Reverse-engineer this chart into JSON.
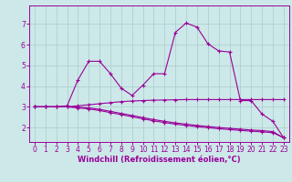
{
  "bg_color": "#cce8e8",
  "grid_color": "#aacccc",
  "line_color": "#990099",
  "xlabel": "Windchill (Refroidissement éolien,°C)",
  "xlabel_fontsize": 6,
  "tick_fontsize": 5.5,
  "ylim": [
    1.3,
    7.9
  ],
  "xlim": [
    -0.5,
    23.5
  ],
  "xticks": [
    0,
    1,
    2,
    3,
    4,
    5,
    6,
    7,
    8,
    9,
    10,
    11,
    12,
    13,
    14,
    15,
    16,
    17,
    18,
    19,
    20,
    21,
    22,
    23
  ],
  "yticks": [
    2,
    3,
    4,
    5,
    6,
    7
  ],
  "line1_x": [
    0,
    1,
    2,
    3,
    4,
    5,
    6,
    7,
    8,
    9,
    10,
    11,
    12,
    13,
    14,
    15,
    16,
    17,
    18,
    19,
    20,
    21,
    22,
    23
  ],
  "line1_y": [
    3.0,
    3.0,
    3.0,
    3.05,
    4.3,
    5.2,
    5.2,
    4.6,
    3.9,
    3.55,
    4.05,
    4.6,
    4.6,
    6.6,
    7.05,
    6.85,
    6.05,
    5.7,
    5.65,
    3.3,
    3.3,
    2.65,
    2.3,
    1.5
  ],
  "line2_x": [
    0,
    1,
    2,
    3,
    4,
    5,
    6,
    7,
    8,
    9,
    10,
    11,
    12,
    13,
    14,
    15,
    16,
    17,
    18,
    19,
    20,
    21,
    22,
    23
  ],
  "line2_y": [
    3.0,
    3.0,
    3.0,
    3.0,
    3.05,
    3.1,
    3.15,
    3.2,
    3.25,
    3.28,
    3.3,
    3.32,
    3.33,
    3.34,
    3.35,
    3.35,
    3.35,
    3.35,
    3.35,
    3.35,
    3.35,
    3.35,
    3.35,
    3.35
  ],
  "line3_x": [
    0,
    1,
    2,
    3,
    4,
    5,
    6,
    7,
    8,
    9,
    10,
    11,
    12,
    13,
    14,
    15,
    16,
    17,
    18,
    19,
    20,
    21,
    22,
    23
  ],
  "line3_y": [
    3.0,
    3.0,
    3.0,
    3.0,
    2.98,
    2.95,
    2.88,
    2.78,
    2.68,
    2.58,
    2.48,
    2.38,
    2.3,
    2.22,
    2.16,
    2.1,
    2.05,
    2.0,
    1.96,
    1.92,
    1.88,
    1.85,
    1.8,
    1.5
  ],
  "line4_x": [
    0,
    1,
    2,
    3,
    4,
    5,
    6,
    7,
    8,
    9,
    10,
    11,
    12,
    13,
    14,
    15,
    16,
    17,
    18,
    19,
    20,
    21,
    22,
    23
  ],
  "line4_y": [
    3.0,
    3.0,
    3.0,
    3.0,
    2.95,
    2.9,
    2.82,
    2.72,
    2.62,
    2.52,
    2.42,
    2.32,
    2.24,
    2.16,
    2.1,
    2.04,
    1.99,
    1.94,
    1.9,
    1.86,
    1.82,
    1.79,
    1.75,
    1.5
  ]
}
